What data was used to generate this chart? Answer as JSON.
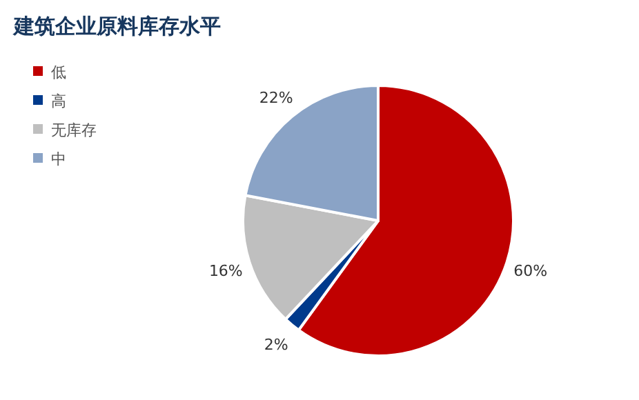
{
  "chart_data": {
    "type": "pie",
    "title": "建筑企业原料库存水平",
    "categories": [
      "低",
      "高",
      "无库存",
      "中"
    ],
    "values": [
      60,
      2,
      16,
      22
    ],
    "colors": [
      "#c00000",
      "#003a8c",
      "#bfbfbf",
      "#8aa3c6"
    ],
    "value_labels": [
      "60%",
      "2%",
      "16%",
      "22%"
    ],
    "legend": "top left"
  }
}
